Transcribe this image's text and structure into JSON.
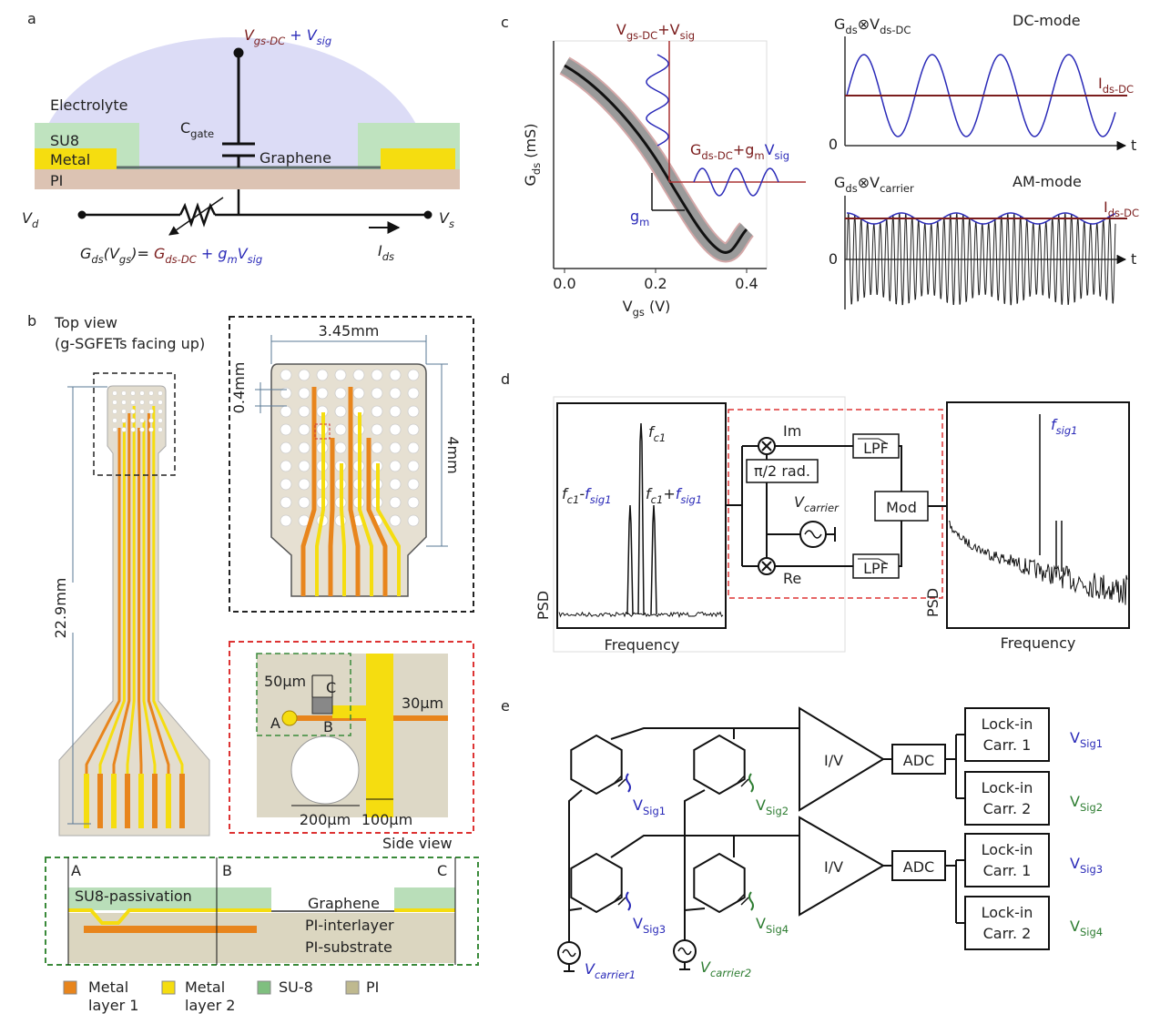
{
  "a": {
    "label": "a",
    "gate": [
      "V",
      "gs-DC",
      " + ",
      "V",
      "sig"
    ],
    "electrolyte": "Electrolyte",
    "cgate": [
      "C",
      "gate"
    ],
    "su8": "SU8",
    "metal": "Metal",
    "pi": "PI",
    "graphene": "Graphene",
    "vd": [
      "V",
      "d"
    ],
    "vs": [
      "V",
      "s"
    ],
    "formula": [
      "G",
      "ds",
      "(V",
      "gs",
      ")= ",
      "G",
      "ds-DC",
      " + ",
      "g",
      "m",
      "V",
      "sig"
    ],
    "ids": [
      "I",
      "ds"
    ]
  },
  "b": {
    "label": "b",
    "top_view": [
      "Top view",
      "(g-SGFETs facing up)"
    ],
    "dims": {
      "width": "3.45mm",
      "pitch": "0.4mm",
      "height": "4mm",
      "length": "22.9mm"
    },
    "detail": {
      "d50": "50µm",
      "c": "C",
      "a": "A",
      "b": "B",
      "d30": "30µm",
      "d200": "200µm",
      "d100": "100µm"
    },
    "side_view": "Side view",
    "cross_section": {
      "a": "A",
      "b": "B",
      "c": "C",
      "su8": "SU8-passivation",
      "graphene": "Graphene",
      "interlayer": "PI-interlayer",
      "substrate": "PI-substrate"
    },
    "legend": [
      [
        "Metal",
        "layer 1"
      ],
      [
        "Metal",
        "layer 2"
      ],
      [
        "SU-8"
      ],
      [
        "PI"
      ]
    ]
  },
  "c": {
    "label": "c",
    "ylabel": [
      "G",
      "ds",
      " (mS)"
    ],
    "xlabel": [
      "V",
      "gs",
      " (V)"
    ],
    "xticks": [
      "0.0",
      "0.2",
      "0.4"
    ],
    "vin": [
      "V",
      "gs-DC",
      "+V",
      "sig"
    ],
    "gout": [
      "G",
      "ds-DC",
      "+g",
      "m",
      "V",
      "sig"
    ],
    "gm": [
      "g",
      "m"
    ],
    "dc": {
      "title": [
        "G",
        "ds",
        "⊗V",
        "ds-DC"
      ],
      "mode": "DC-mode",
      "level": [
        "I",
        "ds-DC"
      ],
      "zero": "0",
      "t": "t"
    },
    "am": {
      "title": [
        "G",
        "ds",
        "⊗V",
        "carrier"
      ],
      "mode": "AM-mode",
      "level": [
        "I",
        "ds-DC"
      ],
      "zero": "0",
      "t": "t"
    }
  },
  "d": {
    "label": "d",
    "left": {
      "ylabel": "PSD",
      "xlabel": "Frequency",
      "fc": [
        "f",
        "c1"
      ],
      "lower": [
        "f",
        "c1",
        "-",
        "f",
        "sig1"
      ],
      "upper": [
        "f",
        "c1",
        "+",
        "f",
        "sig1"
      ]
    },
    "demod": {
      "im": "Im",
      "re": "Re",
      "phase": "π/2 rad.",
      "carrier": [
        "V",
        "carrier"
      ],
      "lpf": [
        "LPF",
        "LPF"
      ],
      "mod": "Mod"
    },
    "right": {
      "ylabel": "PSD",
      "xlabel": "Frequency",
      "peak": [
        "f",
        "sig1"
      ]
    }
  },
  "e": {
    "label": "e",
    "amps": [
      "I/V",
      "I/V"
    ],
    "adcs": [
      "ADC",
      "ADC"
    ],
    "lockins": [
      {
        "title": "Lock-in",
        "carrier": "Carr. 1",
        "output": [
          "V",
          "Sig1"
        ]
      },
      {
        "title": "Lock-in",
        "carrier": "Carr. 2",
        "output": [
          "V",
          "Sig2"
        ]
      },
      {
        "title": "Lock-in",
        "carrier": "Carr. 1",
        "output": [
          "V",
          "Sig3"
        ]
      },
      {
        "title": "Lock-in",
        "carrier": "Carr. 2",
        "output": [
          "V",
          "Sig4"
        ]
      }
    ],
    "electrode_signals": [
      [
        "V",
        "Sig1"
      ],
      [
        "V",
        "Sig2"
      ],
      [
        "V",
        "Sig3"
      ],
      [
        "V",
        "Sig4"
      ]
    ],
    "sources": [
      [
        "V",
        "carrier1"
      ],
      [
        "V",
        "carrier2"
      ]
    ]
  }
}
